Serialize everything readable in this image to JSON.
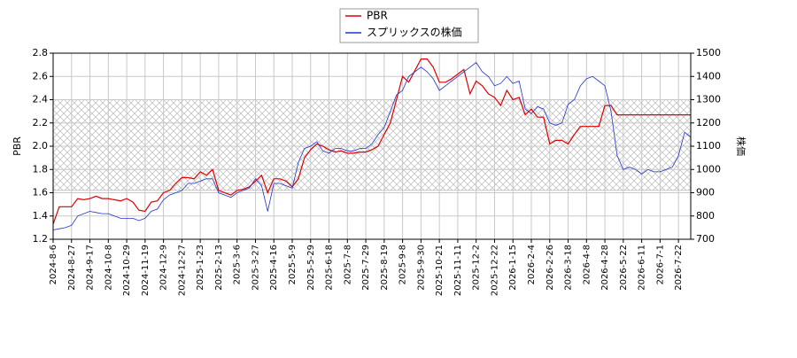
{
  "chart_data": {
    "type": "line",
    "categories": [
      "2024-8-6",
      null,
      null,
      "2024-8-27",
      null,
      null,
      "2024-9-17",
      null,
      null,
      "2024-10-8",
      null,
      null,
      "2024-10-29",
      null,
      null,
      "2024-11-19",
      null,
      null,
      "2024-12-9",
      null,
      null,
      "2024-12-27",
      null,
      null,
      "2025-1-23",
      null,
      null,
      "2025-2-13",
      null,
      null,
      "2025-3-6",
      null,
      null,
      "2025-3-27",
      null,
      null,
      "2025-4-16",
      null,
      null,
      "2025-5-9",
      null,
      null,
      "2025-5-29",
      null,
      null,
      "2025-6-18",
      null,
      null,
      "2025-7-8",
      null,
      null,
      "2025-7-29",
      null,
      null,
      "2025-8-19",
      null,
      null,
      "2025-9-8",
      null,
      null,
      "2025-9-30",
      null,
      null,
      "2025-10-21",
      null,
      null,
      "2025-11-11",
      null,
      null,
      "2025-12-2",
      null,
      null,
      "2025-12-22",
      null,
      null,
      "2026-1-15",
      null,
      null,
      "2026-2-4",
      null,
      null,
      "2026-2-26",
      null,
      null,
      "2026-3-18",
      null,
      null,
      "2026-4-8",
      null,
      null,
      "2026-4-28",
      null,
      null,
      "2026-5-22",
      null,
      null,
      "2026-6-11",
      null,
      null,
      "2026-7-1",
      null,
      null,
      "2026-7-22",
      null,
      null
    ],
    "series": [
      {
        "name": "PBR",
        "color": "#dd0000",
        "values": [
          1.33,
          1.48,
          1.48,
          1.48,
          1.55,
          1.54,
          1.55,
          1.57,
          1.55,
          1.55,
          1.54,
          1.53,
          1.55,
          1.52,
          1.45,
          1.44,
          1.52,
          1.53,
          1.6,
          1.62,
          1.68,
          1.73,
          1.73,
          1.72,
          1.78,
          1.75,
          1.8,
          1.62,
          1.6,
          1.58,
          1.62,
          1.63,
          1.65,
          1.7,
          1.75,
          1.6,
          1.72,
          1.72,
          1.7,
          1.65,
          1.72,
          1.9,
          1.97,
          2.02,
          2.0,
          1.97,
          1.95,
          1.96,
          1.94,
          1.94,
          1.95,
          1.95,
          1.97,
          2.0,
          2.1,
          2.2,
          2.4,
          2.6,
          2.55,
          2.65,
          2.75,
          2.75,
          2.68,
          2.55,
          2.55,
          2.58,
          2.62,
          2.66,
          2.45,
          2.56,
          2.52,
          2.45,
          2.42,
          2.35,
          2.48,
          2.4,
          2.42,
          2.27,
          2.32,
          2.25,
          2.25,
          2.02,
          2.05,
          2.05,
          2.02,
          2.1,
          2.17,
          2.17,
          2.17,
          2.17,
          2.35,
          2.35,
          2.27,
          2.27,
          2.27,
          2.27,
          2.27,
          2.27,
          2.27,
          2.27,
          2.27,
          2.27,
          2.27,
          2.27,
          2.27
        ]
      },
      {
        "name": "スプリックスの株価",
        "color": "#2233cc",
        "axis": "y2",
        "values": [
          740,
          745,
          750,
          760,
          800,
          810,
          820,
          815,
          810,
          810,
          800,
          790,
          790,
          790,
          780,
          790,
          820,
          830,
          870,
          890,
          900,
          910,
          940,
          940,
          950,
          960,
          960,
          900,
          890,
          880,
          900,
          910,
          920,
          960,
          930,
          820,
          940,
          940,
          930,
          920,
          1030,
          1090,
          1100,
          1120,
          1080,
          1070,
          1090,
          1090,
          1080,
          1080,
          1090,
          1090,
          1110,
          1150,
          1180,
          1250,
          1320,
          1340,
          1400,
          1420,
          1440,
          1420,
          1390,
          1340,
          1360,
          1380,
          1400,
          1420,
          1440,
          1460,
          1420,
          1400,
          1360,
          1370,
          1400,
          1370,
          1380,
          1260,
          1240,
          1270,
          1260,
          1200,
          1190,
          1200,
          1280,
          1300,
          1360,
          1390,
          1400,
          1380,
          1360,
          1250,
          1060,
          1000,
          1010,
          1000,
          980,
          1000,
          990,
          990,
          1000,
          1010,
          1060,
          1160,
          1140
        ]
      }
    ],
    "ylabel": "PBR",
    "y2label": "株価",
    "ylim": [
      1.2,
      2.8
    ],
    "yticks": [
      1.2,
      1.4,
      1.6,
      1.8,
      {
        "value": 2,
        "label": "2.0"
      },
      2.2,
      2.4,
      2.6,
      2.8
    ],
    "y2lim": [
      700,
      1500
    ],
    "y2ticks": [
      700,
      800,
      900,
      1000,
      1100,
      1200,
      1300,
      1400,
      1500
    ],
    "band": [
      1.62,
      2.4
    ],
    "grid": true,
    "legend": "top"
  }
}
